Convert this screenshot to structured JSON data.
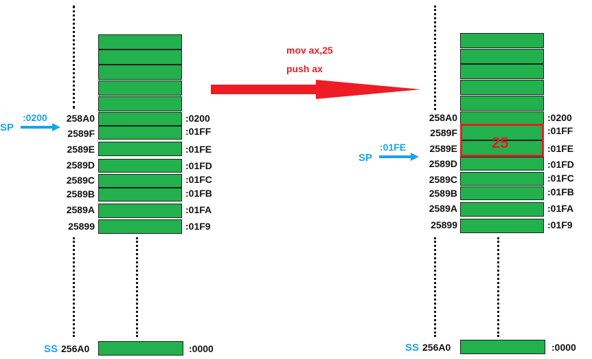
{
  "instructions": {
    "line1": "mov ax,25",
    "line2": "push ax"
  },
  "colors": {
    "cell": "#23b14d",
    "arrow_red": "#e41e24",
    "sp_blue": "#1aa3e8"
  },
  "before": {
    "sp_label": "SP",
    "sp_value": ":0200",
    "ss_label": "SS",
    "ss_address": "256A0",
    "ss_offset": ":0000",
    "rows": [
      {
        "address": "258A0",
        "offset": ":0200"
      },
      {
        "address": "2589F",
        "offset": ":01FF"
      },
      {
        "address": "2589E",
        "offset": ":01FE"
      },
      {
        "address": "2589D",
        "offset": ":01FD"
      },
      {
        "address": "2589C",
        "offset": ":01FC"
      },
      {
        "address": "2589B",
        "offset": ":01FB"
      },
      {
        "address": "2589A",
        "offset": ":01FA"
      },
      {
        "address": "25899",
        "offset": ":01F9"
      }
    ]
  },
  "after": {
    "sp_label": "SP",
    "sp_value": ":01FE",
    "pushed_value": "25",
    "ss_label": "SS",
    "ss_address": "256A0",
    "ss_offset": ":0000",
    "rows": [
      {
        "address": "258A0",
        "offset": ":0200"
      },
      {
        "address": "2589F",
        "offset": ":01FF"
      },
      {
        "address": "2589E",
        "offset": ":01FE"
      },
      {
        "address": "2589D",
        "offset": ":01FD"
      },
      {
        "address": "2589C",
        "offset": ":01FC"
      },
      {
        "address": "2589B",
        "offset": ":01FB"
      },
      {
        "address": "2589A",
        "offset": ":01FA"
      },
      {
        "address": "25899",
        "offset": ":01F9"
      }
    ]
  }
}
